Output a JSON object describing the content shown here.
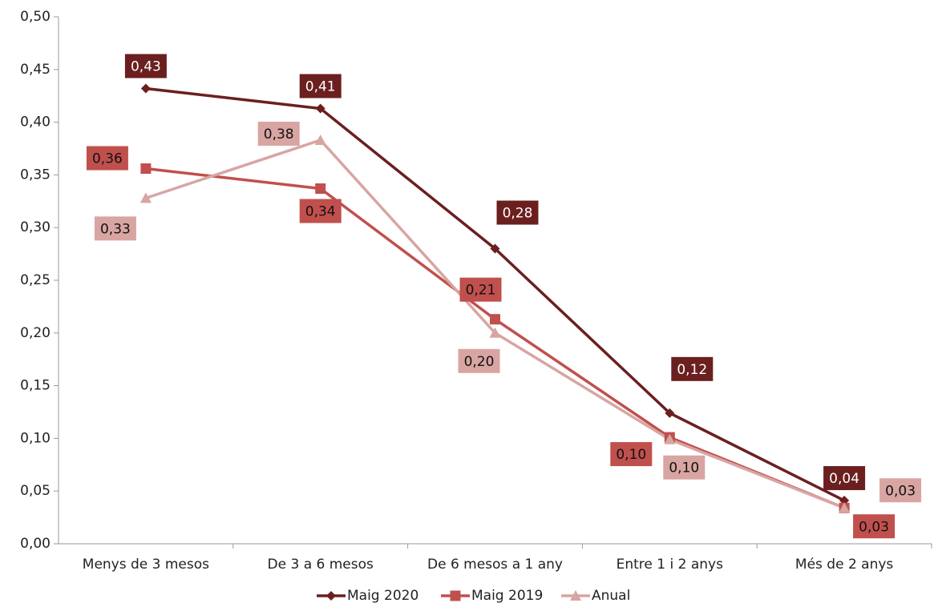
{
  "chart_data": {
    "type": "line",
    "categories": [
      "Menys de 3 mesos",
      "De 3 a 6 mesos",
      "De 6 mesos a 1 any",
      "Entre 1 i 2 anys",
      "Més de 2 anys"
    ],
    "series": [
      {
        "name": "Maig 2020",
        "color": "#6b1f1f",
        "marker": "diamond",
        "values": [
          0.432,
          0.413,
          0.28,
          0.124,
          0.041
        ],
        "value_labels": [
          "0,43",
          "0,41",
          "0,28",
          "0,12",
          "0,04"
        ]
      },
      {
        "name": "Maig 2019",
        "color": "#c0504d",
        "marker": "square",
        "values": [
          0.356,
          0.337,
          0.213,
          0.101,
          0.034
        ],
        "value_labels": [
          "0,36",
          "0,34",
          "0,21",
          "0,10",
          "0,03"
        ]
      },
      {
        "name": "Anual",
        "color": "#d8a5a3",
        "marker": "triangle",
        "values": [
          0.328,
          0.383,
          0.2,
          0.099,
          0.034
        ],
        "value_labels": [
          "0,33",
          "0,38",
          "0,20",
          "0,10",
          "0,03"
        ]
      }
    ],
    "ylim": [
      0,
      0.5
    ],
    "yticks": [
      {
        "value": 0,
        "label": "0,00"
      },
      {
        "value": 0.05,
        "label": "0,05"
      },
      {
        "value": 0.1,
        "label": "0,10"
      },
      {
        "value": 0.15,
        "label": "0,15"
      },
      {
        "value": 0.2,
        "label": "0,20"
      },
      {
        "value": 0.25,
        "label": "0,25"
      },
      {
        "value": 0.3,
        "label": "0,30"
      },
      {
        "value": 0.35,
        "label": "0,35"
      },
      {
        "value": 0.4,
        "label": "0,40"
      },
      {
        "value": 0.45,
        "label": "0,45"
      },
      {
        "value": 0.5,
        "label": "0,50"
      }
    ],
    "legend": "bottom"
  }
}
